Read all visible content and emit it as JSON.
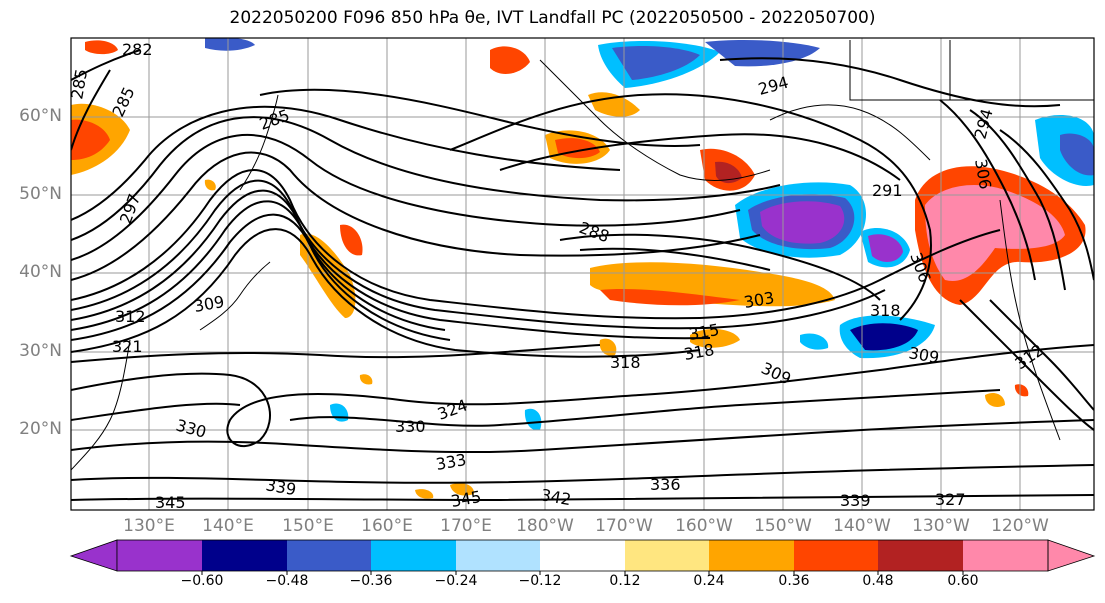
{
  "title": "2022050200 F096 850 hPa θe, IVT Landfall PC (2022050500 - 2022050700)",
  "map": {
    "lat_labels": [
      "60°N",
      "50°N",
      "40°N",
      "30°N",
      "20°N"
    ],
    "lon_labels": [
      "130°E",
      "140°E",
      "150°E",
      "160°E",
      "170°E",
      "180°W",
      "170°W",
      "160°W",
      "150°W",
      "140°W",
      "130°W",
      "120°W"
    ],
    "contour_labels": [
      "282",
      "285",
      "285",
      "285",
      "294",
      "291",
      "288",
      "297",
      "309",
      "312",
      "321",
      "303",
      "315",
      "318",
      "318",
      "309",
      "318",
      "309",
      "312",
      "330",
      "330",
      "324",
      "333",
      "339",
      "345",
      "345",
      "342",
      "336",
      "339",
      "327",
      "294",
      "306",
      "306"
    ],
    "grid": true
  },
  "colorbar": {
    "ticks": [
      "−0.60",
      "−0.48",
      "−0.36",
      "−0.24",
      "−0.12",
      "0.12",
      "0.24",
      "0.36",
      "0.48",
      "0.60"
    ],
    "colors": [
      "#9932cc",
      "#00008b",
      "#3a5bc8",
      "#00bfff",
      "#b0e2ff",
      "#ffffff",
      "#ffe680",
      "#ffa500",
      "#ff4500",
      "#b22222",
      "#ff88aa"
    ]
  }
}
